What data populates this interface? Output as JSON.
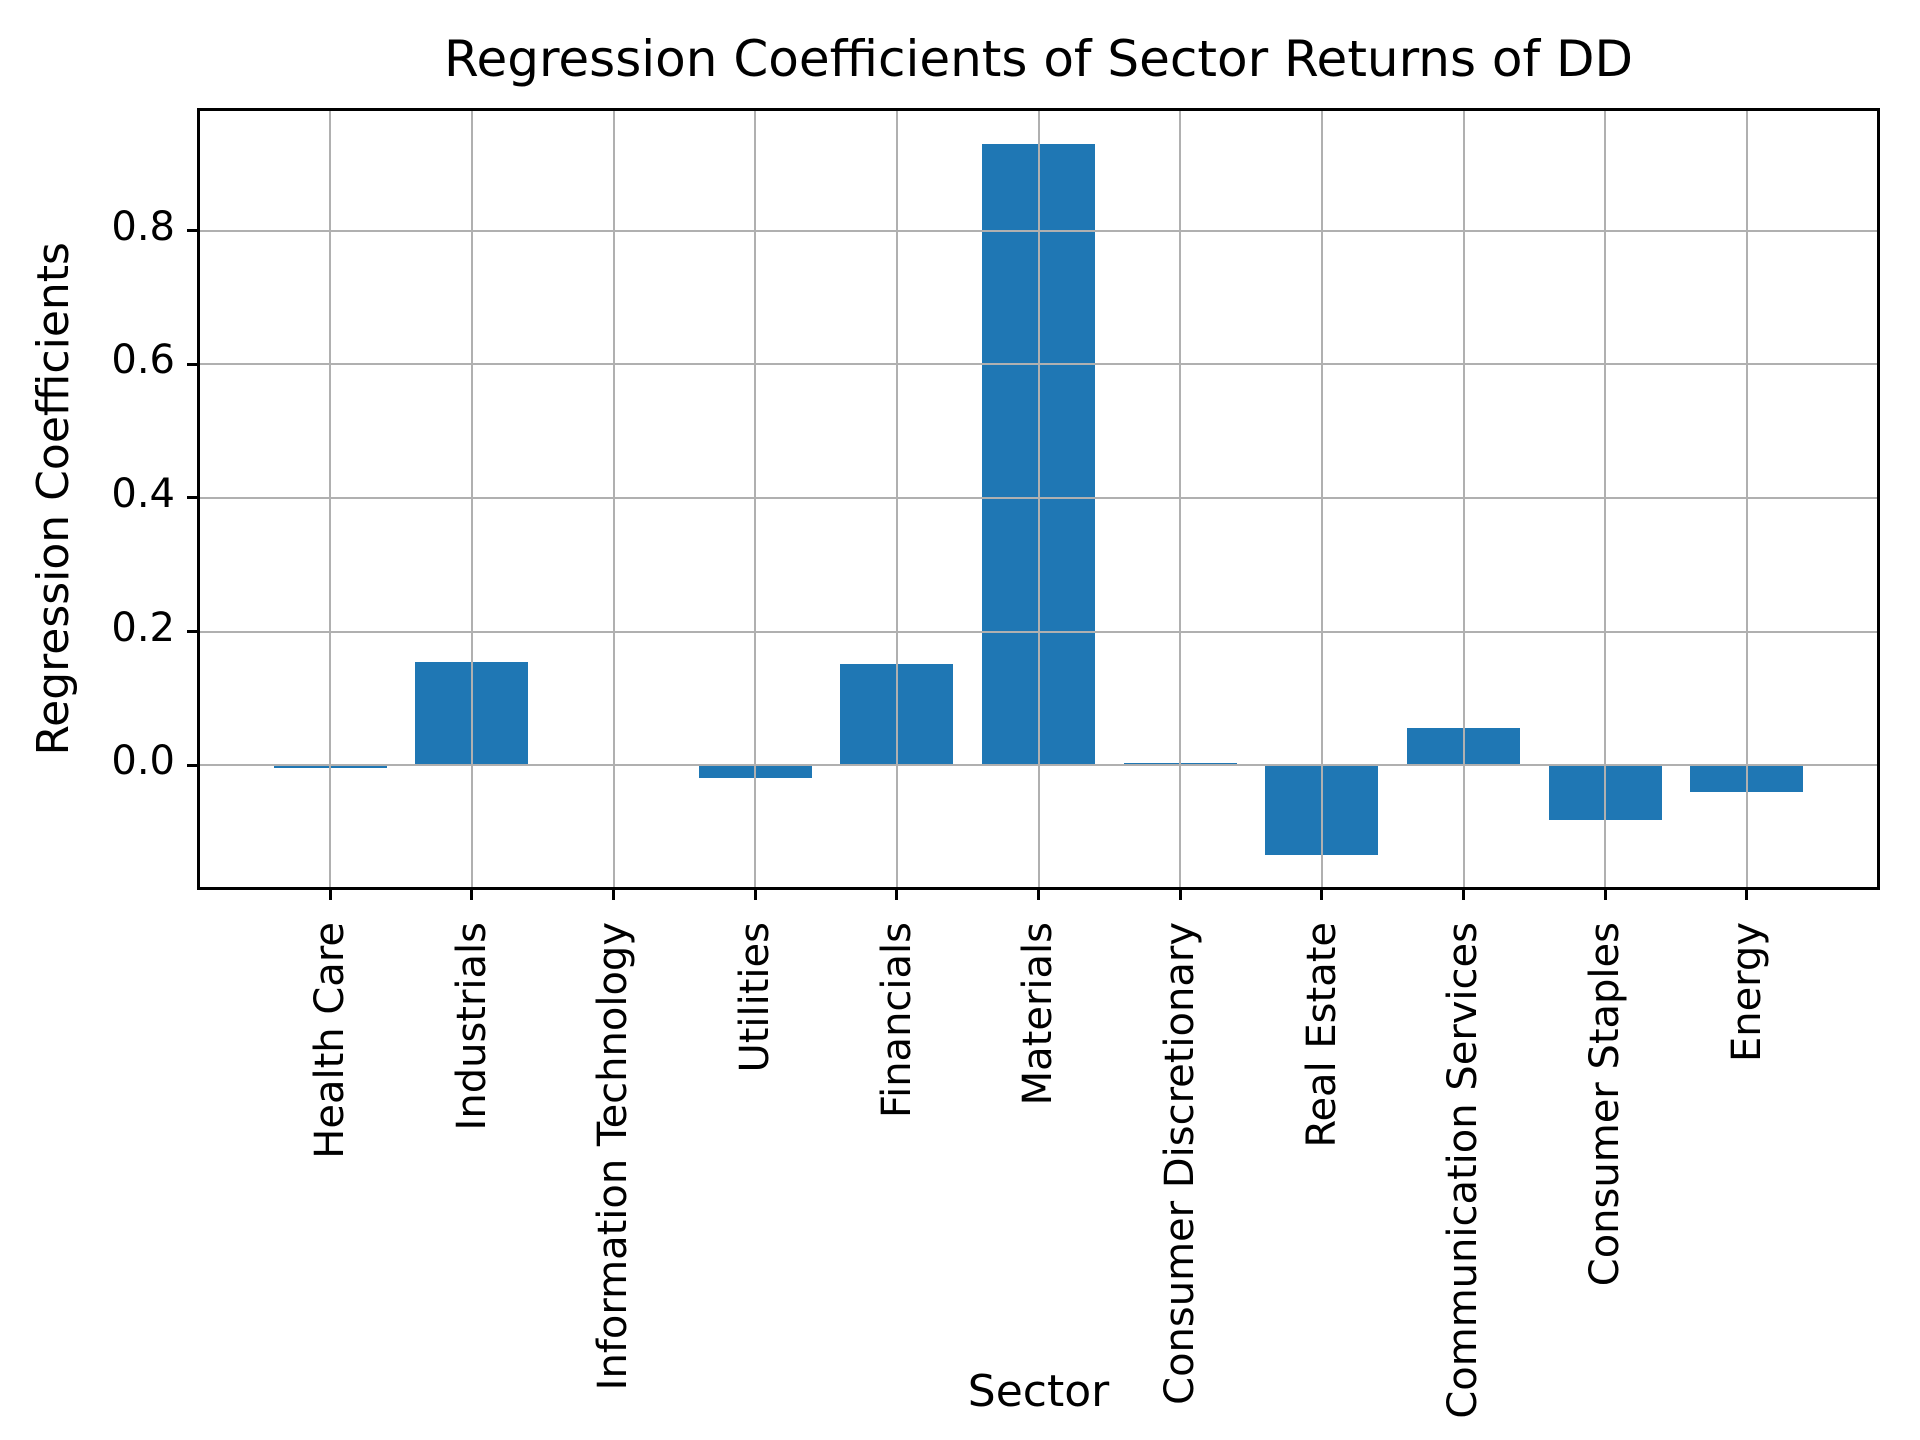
{
  "figure": {
    "title": "Regression Coefficients of Sector Returns of DD",
    "xlabel": "Sector",
    "ylabel": "Regression Coefficients"
  },
  "chart_data": {
    "type": "bar",
    "title": "Regression Coefficients of Sector Returns of DD",
    "xlabel": "Sector",
    "ylabel": "Regression Coefficients",
    "categories": [
      "Health Care",
      "Industrials",
      "Information Technology",
      "Utilities",
      "Financials",
      "Materials",
      "Consumer Discretionary",
      "Real Estate",
      "Communication Services",
      "Consumer Staples",
      "Energy"
    ],
    "values": [
      -0.005,
      0.155,
      0.0,
      -0.019,
      0.151,
      0.93,
      0.003,
      -0.134,
      0.056,
      -0.082,
      -0.04
    ],
    "yticks": [
      0.0,
      0.2,
      0.4,
      0.6,
      0.8
    ],
    "ytick_labels": [
      "0.0",
      "0.2",
      "0.4",
      "0.6",
      "0.8"
    ],
    "ylim": [
      -0.187,
      0.984
    ],
    "grid": "on",
    "grid_over_bars": true,
    "legend": "none",
    "x_tick_rotation_deg": 90,
    "bar_color": "#1f77b4",
    "grid_color": "#b0b0b0",
    "spine_color": "#000000",
    "text_color": "#000000"
  }
}
